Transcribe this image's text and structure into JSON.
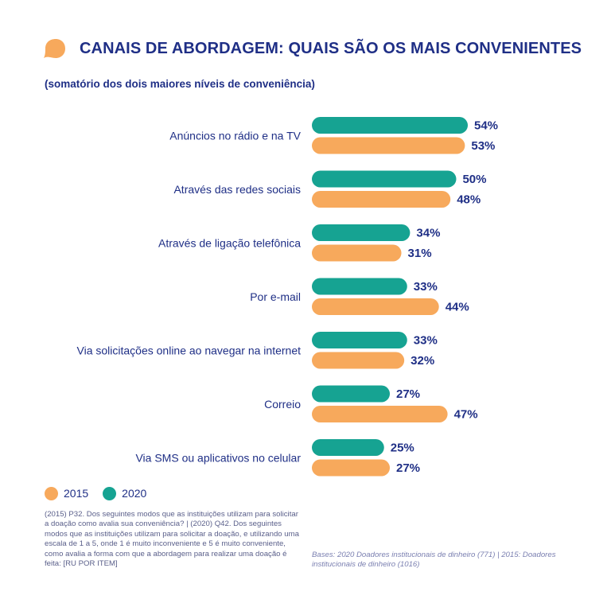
{
  "title": "CANAIS DE ABORDAGEM: QUAIS SÃO OS MAIS CONVENIENTES",
  "subtitle": "(somatório dos dois maiores níveis de conveniência)",
  "colors": {
    "series_2020": "#16a392",
    "series_2015": "#f7a95c",
    "text": "#1f2f86",
    "icon": "#f7a95c"
  },
  "chart_data": {
    "type": "bar",
    "orientation": "horizontal",
    "value_suffix": "%",
    "categories": [
      "Anúncios no rádio e na TV",
      "Através das redes sociais",
      "Através de ligação telefônica",
      "Por e-mail",
      "Via solicitações online ao navegar na internet",
      "Correio",
      "Via SMS ou aplicativos no celular"
    ],
    "series": [
      {
        "name": "2020",
        "color": "#16a392",
        "values": [
          54,
          50,
          34,
          33,
          33,
          27,
          25
        ]
      },
      {
        "name": "2015",
        "color": "#f7a95c",
        "values": [
          53,
          48,
          31,
          44,
          32,
          47,
          27
        ]
      }
    ],
    "xlim": [
      0,
      54
    ],
    "legend_position": "bottom-left",
    "grid": false
  },
  "legend": [
    {
      "label": "2015",
      "color": "#f7a95c"
    },
    {
      "label": "2020",
      "color": "#16a392"
    }
  ],
  "footnote": "(2015) P32. Dos seguintes modos que as instituições utilizam para solicitar a doação como avalia sua conveniência? | (2020) Q42. Dos seguintes modos que as instituições utilizam para solicitar a doação, e utilizando uma escala de 1 a 5, onde 1 é muito inconveniente e 5 é muito conveniente, como avalia a forma com que a abordagem para realizar uma doação é feita: [RU POR ITEM]",
  "sources": "Bases: 2020 Doadores institucionais de dinheiro (771) |  2015: Doadores institucionais de dinheiro (1016)"
}
